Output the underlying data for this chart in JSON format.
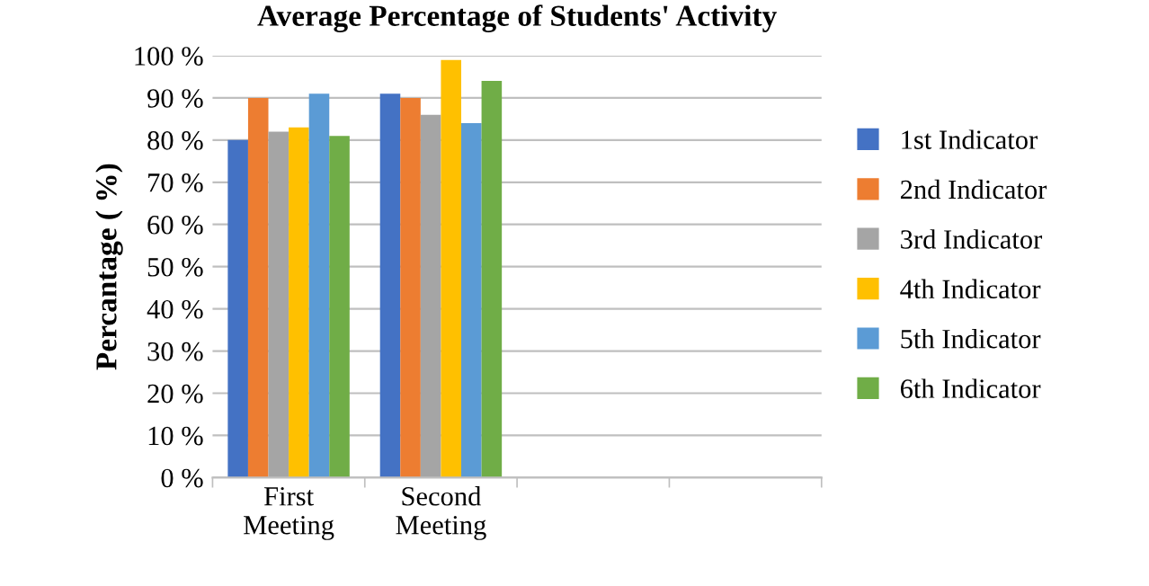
{
  "chart_data": {
    "type": "bar",
    "title": "Average Percentage of Students' Activity",
    "ylabel": "Percantage ( %)",
    "categories": [
      "First\nMeeting",
      "Second\nMeeting",
      null,
      null
    ],
    "series": [
      {
        "name": "1st Indicator",
        "color": "#4472c4",
        "values": [
          80,
          91,
          null,
          null
        ]
      },
      {
        "name": "2nd Indicator",
        "color": "#ed7d31",
        "values": [
          90,
          90,
          null,
          null
        ]
      },
      {
        "name": "3rd Indicator",
        "color": "#a5a5a5",
        "values": [
          82,
          86,
          null,
          null
        ]
      },
      {
        "name": "4th Indicator",
        "color": "#ffc000",
        "values": [
          83,
          99,
          null,
          null
        ]
      },
      {
        "name": "5th Indicator",
        "color": "#5b9bd5",
        "values": [
          91,
          84,
          null,
          null
        ]
      },
      {
        "name": "6th Indicator",
        "color": "#70ad47",
        "values": [
          81,
          94,
          null,
          null
        ]
      }
    ],
    "ylim": [
      0,
      100
    ],
    "yticks": [
      {
        "value": 0,
        "label": "0 %"
      },
      {
        "value": 10,
        "label": "10 %"
      },
      {
        "value": 20,
        "label": "20 %"
      },
      {
        "value": 30,
        "label": "30 %"
      },
      {
        "value": 40,
        "label": "40 %"
      },
      {
        "value": 50,
        "label": "50 %"
      },
      {
        "value": 60,
        "label": "60 %"
      },
      {
        "value": 70,
        "label": "70 %"
      },
      {
        "value": 80,
        "label": "80 %"
      },
      {
        "value": 90,
        "label": "90 %"
      },
      {
        "value": 100,
        "label": "100 %"
      }
    ],
    "grid": "y",
    "legend": "right"
  }
}
